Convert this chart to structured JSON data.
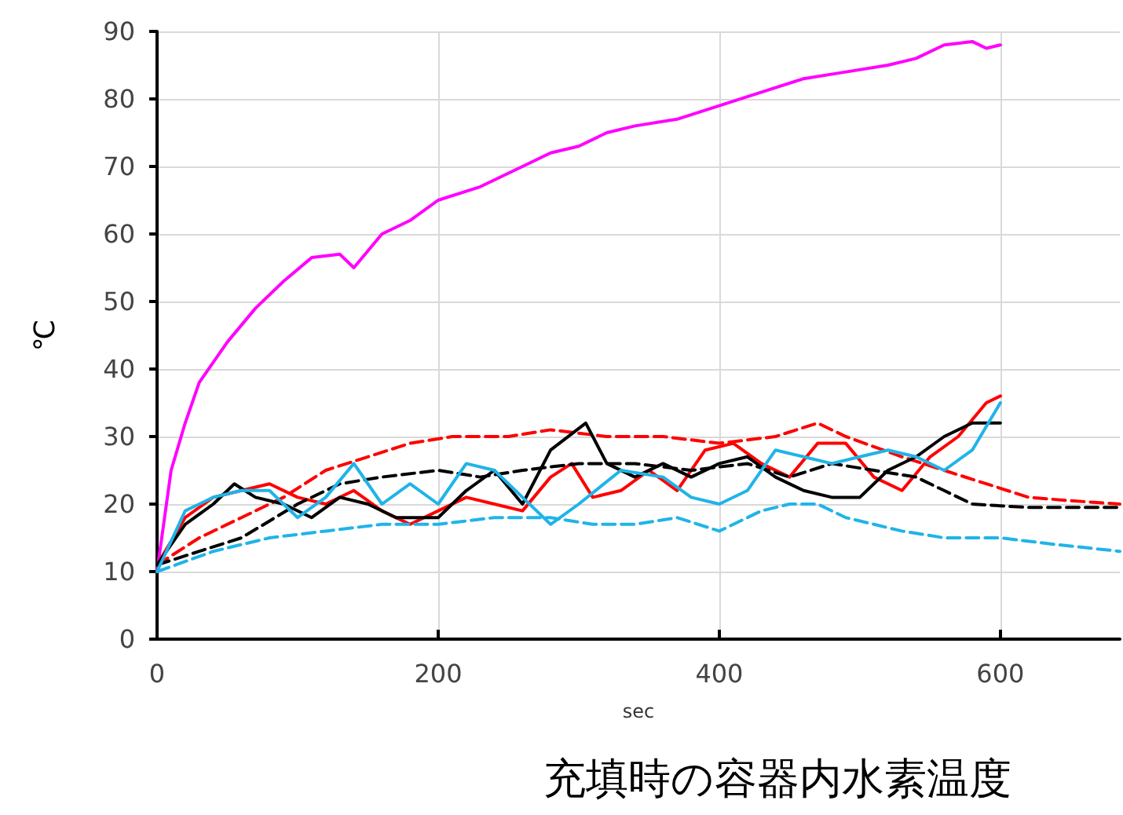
{
  "chart_data": {
    "type": "line",
    "title": "充填時の容器内水素温度",
    "xlabel": "sec",
    "ylabel": "℃",
    "xlim": [
      0,
      685
    ],
    "xticks": [
      0,
      200,
      400,
      600
    ],
    "ylim": [
      0,
      90
    ],
    "yticks": [
      0,
      10,
      20,
      30,
      40,
      50,
      60,
      70,
      80,
      90
    ],
    "grid": true,
    "marker": "none",
    "series": [
      {
        "color": "#ff00ff",
        "line_style": "solid",
        "x": [
          0,
          10,
          20,
          30,
          50,
          70,
          90,
          110,
          130,
          140,
          160,
          180,
          200,
          230,
          260,
          280,
          300,
          320,
          340,
          370,
          400,
          430,
          460,
          490,
          520,
          540,
          560,
          580,
          590,
          600
        ],
        "values": [
          10,
          25,
          32,
          38,
          44,
          49,
          53,
          56.5,
          57,
          55,
          60,
          62,
          65,
          67,
          70,
          72,
          73,
          75,
          76,
          77,
          79,
          81,
          83,
          84,
          85,
          86,
          88,
          88.5,
          87.5,
          88
        ]
      },
      {
        "color": "#ff0000",
        "line_style": "solid",
        "x": [
          0,
          20,
          40,
          60,
          80,
          100,
          120,
          140,
          160,
          180,
          200,
          220,
          240,
          260,
          280,
          295,
          310,
          330,
          350,
          370,
          390,
          410,
          430,
          450,
          470,
          490,
          510,
          530,
          550,
          570,
          590,
          600
        ],
        "values": [
          11,
          18,
          21,
          22,
          23,
          21,
          20,
          22,
          19,
          17,
          19,
          21,
          20,
          19,
          24,
          26,
          21,
          22,
          25,
          22,
          28,
          29,
          26,
          24,
          29,
          29,
          24,
          22,
          27,
          30,
          35,
          36
        ]
      },
      {
        "color": "#ff0000",
        "line_style": "dashed",
        "x": [
          0,
          30,
          60,
          90,
          120,
          150,
          180,
          210,
          250,
          280,
          320,
          360,
          400,
          440,
          470,
          490,
          530,
          560,
          590,
          620,
          650,
          685
        ],
        "values": [
          11,
          15,
          18,
          21,
          25,
          27,
          29,
          30,
          30,
          31,
          30,
          30,
          29,
          30,
          32,
          30,
          27,
          25,
          23,
          21,
          20.5,
          20
        ]
      },
      {
        "color": "#000000",
        "line_style": "solid",
        "x": [
          0,
          20,
          40,
          55,
          70,
          90,
          110,
          130,
          150,
          170,
          200,
          220,
          240,
          260,
          280,
          305,
          320,
          340,
          360,
          380,
          400,
          420,
          440,
          460,
          480,
          500,
          520,
          540,
          560,
          580,
          600
        ],
        "values": [
          11,
          17,
          20,
          23,
          21,
          20,
          18,
          21,
          20,
          18,
          18,
          22,
          25,
          20,
          28,
          32,
          26,
          24,
          26,
          24,
          26,
          27,
          24,
          22,
          21,
          21,
          25,
          27,
          30,
          32,
          32
        ]
      },
      {
        "color": "#000000",
        "line_style": "dashed",
        "x": [
          0,
          30,
          60,
          100,
          130,
          160,
          200,
          230,
          260,
          300,
          340,
          380,
          420,
          450,
          480,
          510,
          540,
          560,
          580,
          620,
          685
        ],
        "values": [
          11,
          13,
          15,
          20,
          23,
          24,
          25,
          24,
          25,
          26,
          26,
          25,
          26,
          24,
          26,
          25,
          24,
          22,
          20,
          19.5,
          19.5
        ]
      },
      {
        "color": "#1fb4e8",
        "line_style": "solid",
        "x": [
          0,
          20,
          40,
          60,
          80,
          100,
          120,
          140,
          160,
          180,
          200,
          220,
          240,
          260,
          280,
          300,
          330,
          360,
          380,
          400,
          420,
          440,
          460,
          480,
          500,
          520,
          540,
          560,
          580,
          600
        ],
        "values": [
          10,
          19,
          21,
          22,
          22,
          18,
          21,
          26,
          20,
          23,
          20,
          26,
          25,
          21,
          17,
          20,
          25,
          24,
          21,
          20,
          22,
          28,
          27,
          26,
          27,
          28,
          27,
          25,
          28,
          35
        ]
      },
      {
        "color": "#1fb4e8",
        "line_style": "dashed",
        "x": [
          0,
          40,
          80,
          120,
          160,
          200,
          240,
          280,
          310,
          340,
          370,
          400,
          430,
          450,
          470,
          490,
          510,
          530,
          560,
          600,
          640,
          685
        ],
        "values": [
          10,
          13,
          15,
          16,
          17,
          17,
          18,
          18,
          17,
          17,
          18,
          16,
          19,
          20,
          20,
          18,
          17,
          16,
          15,
          15,
          14,
          13
        ]
      }
    ]
  }
}
